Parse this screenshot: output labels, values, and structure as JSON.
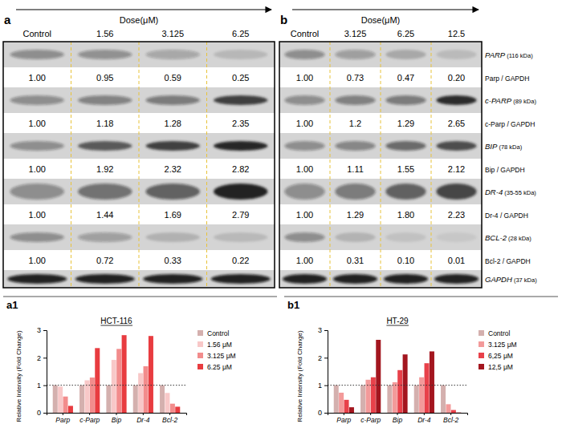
{
  "blots": {
    "rows": [
      {
        "protein": "PARP",
        "size": "(116 kDa)",
        "ratio_name": "Parp / GAPDH"
      },
      {
        "protein": "c-PARP",
        "size": "(89 kDa)",
        "ratio_name": "c-Parp / GAPDH"
      },
      {
        "protein": "BIP",
        "size": "(78 kDa)",
        "ratio_name": "Bip / GAPDH"
      },
      {
        "protein": "DR-4",
        "size": "(35-55 kDa)",
        "ratio_name": "Dr-4 / GAPDH"
      },
      {
        "protein": "BCL-2",
        "size": "(28 kDa)",
        "ratio_name": "Bcl-2 / GAPDH"
      }
    ],
    "loading_control": {
      "protein": "GAPDH",
      "size": "(37 kDa)"
    },
    "panels": [
      {
        "letter": "a",
        "dose_label": "Dose(μM)",
        "columns": [
          "Control",
          "1.56",
          "3.125",
          "6.25"
        ],
        "ratios": [
          [
            1.0,
            0.95,
            0.59,
            0.25
          ],
          [
            1.0,
            1.18,
            1.28,
            2.35
          ],
          [
            1.0,
            1.92,
            2.32,
            2.82
          ],
          [
            1.0,
            1.44,
            1.69,
            2.79
          ],
          [
            1.0,
            0.72,
            0.33,
            0.22
          ]
        ],
        "ratio_labels": [
          [
            "1.00",
            "0.95",
            "0.59",
            "0.25"
          ],
          [
            "1.00",
            "1.18",
            "1.28",
            "2.35"
          ],
          [
            "1.00",
            "1.92",
            "2.32",
            "2.82"
          ],
          [
            "1.00",
            "1.44",
            "1.69",
            "2.79"
          ],
          [
            "1.00",
            "0.72",
            "0.33",
            "0.22"
          ]
        ]
      },
      {
        "letter": "b",
        "dose_label": "Dose(μM)",
        "columns": [
          "Control",
          "3.125",
          "6.25",
          "12.5"
        ],
        "ratios": [
          [
            1.0,
            0.73,
            0.47,
            0.2
          ],
          [
            1.0,
            1.2,
            1.29,
            2.65
          ],
          [
            1.0,
            1.11,
            1.55,
            2.12
          ],
          [
            1.0,
            1.29,
            1.8,
            2.23
          ],
          [
            1.0,
            0.31,
            0.1,
            0.01
          ]
        ],
        "ratio_labels": [
          [
            "1.00",
            "0.73",
            "0.47",
            "0.20"
          ],
          [
            "1.00",
            "1.2",
            "1.29",
            "2.65"
          ],
          [
            "1.00",
            "1.11",
            "1.55",
            "2.12"
          ],
          [
            "1.00",
            "1.29",
            "1.80",
            "2.23"
          ],
          [
            "1.00",
            "0.31",
            "0.10",
            "0.01"
          ]
        ]
      }
    ]
  },
  "chart_data": [
    {
      "type": "bar",
      "panel_label": "a1",
      "title": "HCT-116",
      "y_label": "Relative Intensity (Fold Change)",
      "categories": [
        "Parp",
        "c-Parp",
        "Bip",
        "Dr-4",
        "Bcl-2"
      ],
      "series": [
        {
          "name": "Control",
          "color": "#d4b0ae",
          "values": [
            1.0,
            1.0,
            1.0,
            1.0,
            1.0
          ]
        },
        {
          "name": "1.56 μM",
          "color": "#f8c8c8",
          "values": [
            0.95,
            1.18,
            1.92,
            1.44,
            0.72
          ]
        },
        {
          "name": "3.125 μM",
          "color": "#f28c8c",
          "values": [
            0.59,
            1.28,
            2.32,
            1.69,
            0.33
          ]
        },
        {
          "name": "6.25 μM",
          "color": "#e83c40",
          "values": [
            0.25,
            2.35,
            2.82,
            2.79,
            0.22
          ]
        }
      ],
      "reference_line": 1,
      "ylim": [
        0,
        3
      ],
      "yticks": [
        0,
        1,
        2,
        3
      ],
      "legend": "right"
    },
    {
      "type": "bar",
      "panel_label": "b1",
      "title": "HT-29",
      "y_label": "Relative Intensity (Fold Change)",
      "categories": [
        "Parp",
        "c-Parp",
        "Bip",
        "Dr-4",
        "Bcl-2"
      ],
      "series": [
        {
          "name": "Control",
          "color": "#d4b0ae",
          "values": [
            1.0,
            1.0,
            1.0,
            1.0,
            1.0
          ]
        },
        {
          "name": "3.125 μM",
          "color": "#f39a9a",
          "values": [
            0.73,
            1.2,
            1.11,
            1.29,
            0.31
          ]
        },
        {
          "name": "6,25 μM",
          "color": "#e8414a",
          "values": [
            0.47,
            1.29,
            1.55,
            1.8,
            0.1
          ]
        },
        {
          "name": "12,5 μM",
          "color": "#a3161f",
          "values": [
            0.2,
            2.65,
            2.12,
            2.23,
            0.01
          ]
        }
      ],
      "reference_line": 1,
      "ylim": [
        0,
        3
      ],
      "yticks": [
        0,
        1,
        2,
        3
      ],
      "legend": "right"
    }
  ]
}
